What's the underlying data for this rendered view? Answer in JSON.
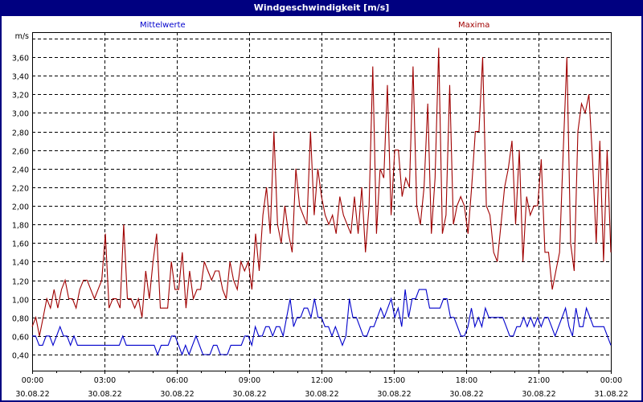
{
  "window": {
    "title": "Windgeschwindigkeit [m/s]"
  },
  "legend": {
    "mittel": "Mittelwerte",
    "max": "Maxima"
  },
  "colors": {
    "mittel": "#0000cc",
    "max": "#a00000",
    "title_bg": "#000080"
  },
  "chart_data": {
    "type": "line",
    "title": "Windgeschwindigkeit [m/s]",
    "ylabel": "m/s",
    "xlabel": "",
    "ylim": [
      0.23,
      3.8
    ],
    "grid": true,
    "legend_position": "top",
    "yticks": [
      "0,40",
      "0,60",
      "0,80",
      "1,00",
      "1,20",
      "1,40",
      "1,60",
      "1,80",
      "2,00",
      "2,20",
      "2,40",
      "2,60",
      "2,80",
      "3,00",
      "3,20",
      "3,40",
      "3,60"
    ],
    "xticks": [
      {
        "time": "00:00",
        "date": "30.08.22"
      },
      {
        "time": "03:00",
        "date": "30.08.22"
      },
      {
        "time": "06:00",
        "date": "30.08.22"
      },
      {
        "time": "09:00",
        "date": "30.08.22"
      },
      {
        "time": "12:00",
        "date": "30.08.22"
      },
      {
        "time": "15:00",
        "date": "30.08.22"
      },
      {
        "time": "18:00",
        "date": "30.08.22"
      },
      {
        "time": "21:00",
        "date": "30.08.22"
      },
      {
        "time": "00:00",
        "date": "31.08.22"
      }
    ],
    "x_interval_minutes": 10,
    "series": [
      {
        "name": "Mittelwerte",
        "color": "#0000cc",
        "values": [
          0.6,
          0.6,
          0.5,
          0.5,
          0.6,
          0.6,
          0.5,
          0.6,
          0.7,
          0.6,
          0.6,
          0.5,
          0.6,
          0.5,
          0.5,
          0.5,
          0.5,
          0.5,
          0.5,
          0.5,
          0.5,
          0.5,
          0.5,
          0.5,
          0.5,
          0.5,
          0.6,
          0.5,
          0.5,
          0.5,
          0.5,
          0.5,
          0.5,
          0.5,
          0.5,
          0.5,
          0.4,
          0.5,
          0.5,
          0.5,
          0.6,
          0.6,
          0.5,
          0.4,
          0.5,
          0.4,
          0.5,
          0.6,
          0.5,
          0.4,
          0.4,
          0.4,
          0.5,
          0.5,
          0.4,
          0.4,
          0.4,
          0.5,
          0.5,
          0.5,
          0.5,
          0.6,
          0.6,
          0.5,
          0.7,
          0.6,
          0.6,
          0.7,
          0.7,
          0.6,
          0.7,
          0.7,
          0.6,
          0.8,
          1.0,
          0.7,
          0.8,
          0.8,
          0.9,
          0.9,
          0.8,
          1.0,
          0.8,
          0.8,
          0.7,
          0.7,
          0.6,
          0.7,
          0.6,
          0.5,
          0.6,
          1.0,
          0.8,
          0.8,
          0.7,
          0.6,
          0.6,
          0.7,
          0.7,
          0.8,
          0.9,
          0.8,
          0.9,
          1.0,
          0.8,
          0.9,
          0.7,
          1.1,
          0.8,
          1.0,
          1.0,
          1.1,
          1.1,
          1.1,
          0.9,
          0.9,
          0.9,
          0.9,
          1.0,
          1.0,
          0.8,
          0.8,
          0.7,
          0.6,
          0.6,
          0.7,
          0.9,
          0.7,
          0.8,
          0.7,
          0.9,
          0.8,
          0.8,
          0.8,
          0.8,
          0.8,
          0.7,
          0.6,
          0.6,
          0.7,
          0.7,
          0.8,
          0.7,
          0.8,
          0.7,
          0.8,
          0.7,
          0.8,
          0.8,
          0.7,
          0.6,
          0.7,
          0.8,
          0.9,
          0.7,
          0.6,
          0.9,
          0.7,
          0.7,
          0.9,
          0.8,
          0.7,
          0.7,
          0.7,
          0.7,
          0.6,
          0.5
        ]
      },
      {
        "name": "Maxima",
        "color": "#a00000",
        "values": [
          0.7,
          0.8,
          0.6,
          0.8,
          1.0,
          0.9,
          1.1,
          0.9,
          1.1,
          1.2,
          1.0,
          1.0,
          0.9,
          1.1,
          1.2,
          1.2,
          1.1,
          1.0,
          1.1,
          1.2,
          1.7,
          0.9,
          1.0,
          1.0,
          0.9,
          1.8,
          1.0,
          1.0,
          0.9,
          1.0,
          0.8,
          1.3,
          1.0,
          1.4,
          1.7,
          0.9,
          0.9,
          0.9,
          1.4,
          1.1,
          1.1,
          1.5,
          0.9,
          1.3,
          1.0,
          1.1,
          1.1,
          1.4,
          1.3,
          1.2,
          1.3,
          1.3,
          1.1,
          1.0,
          1.4,
          1.2,
          1.1,
          1.4,
          1.3,
          1.4,
          1.1,
          1.7,
          1.3,
          1.9,
          2.2,
          1.7,
          2.8,
          1.8,
          1.6,
          2.0,
          1.7,
          1.5,
          2.4,
          2.0,
          1.9,
          1.8,
          2.8,
          1.9,
          2.4,
          2.1,
          1.9,
          1.8,
          1.9,
          1.7,
          2.1,
          1.9,
          1.8,
          1.7,
          2.1,
          1.7,
          2.2,
          1.5,
          2.0,
          3.5,
          1.7,
          2.4,
          2.3,
          3.3,
          1.9,
          2.6,
          2.6,
          2.1,
          2.3,
          2.2,
          3.5,
          2.0,
          1.8,
          2.2,
          3.1,
          1.7,
          2.3,
          3.7,
          1.7,
          1.9,
          3.3,
          1.8,
          2.0,
          2.1,
          2.0,
          1.7,
          2.2,
          2.8,
          2.8,
          3.6,
          2.0,
          1.9,
          1.5,
          1.4,
          1.8,
          2.2,
          2.4,
          2.7,
          1.8,
          2.6,
          1.4,
          2.1,
          1.9,
          2.0,
          2.0,
          2.5,
          1.5,
          1.5,
          1.1,
          1.3,
          1.5,
          2.6,
          3.6,
          1.6,
          1.3,
          2.8,
          3.1,
          3.0,
          3.2,
          2.5,
          1.6,
          2.7,
          1.4,
          2.6,
          1.5
        ]
      }
    ]
  }
}
